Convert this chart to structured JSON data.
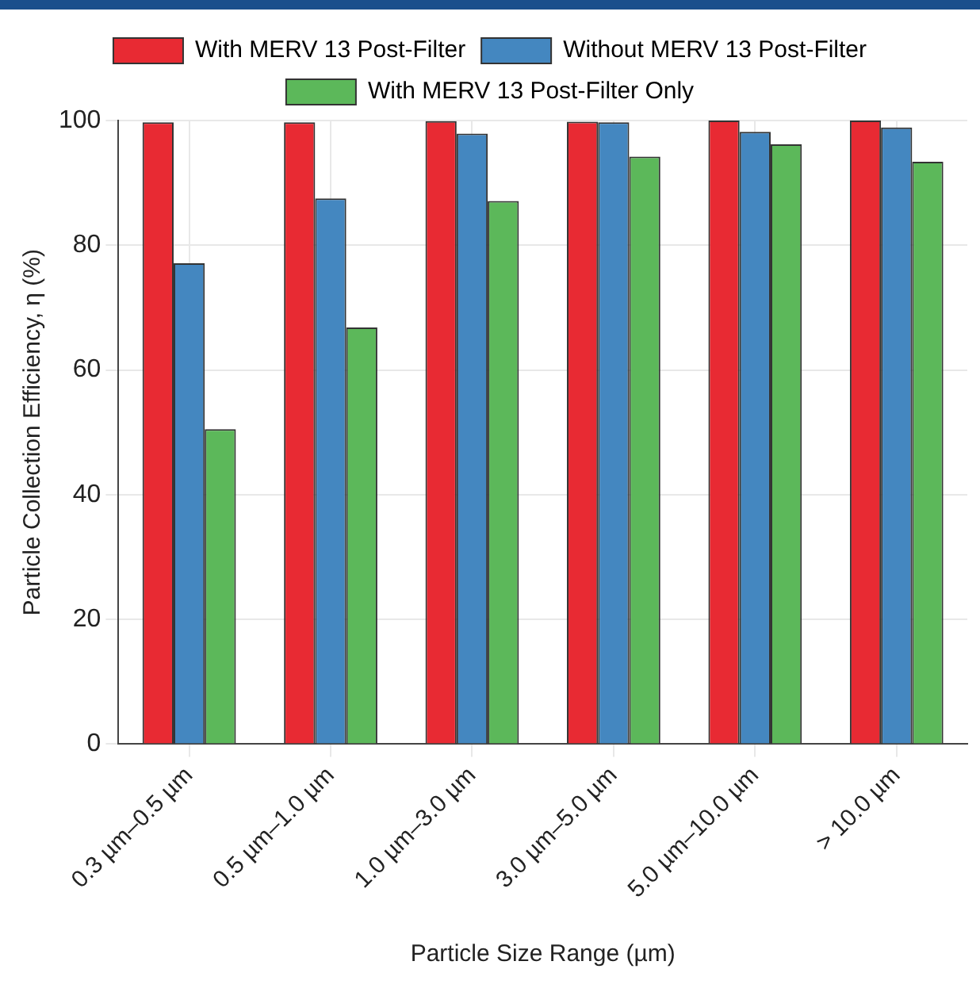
{
  "chart_data": {
    "type": "bar",
    "xlabel": "Particle Size Range (µm)",
    "ylabel": "Particle Collection Efficiency, η (%)",
    "categories": [
      "0.3 µm–0.5 µm",
      "0.5 µm–1.0 µm",
      "1.0 µm–3.0 µm",
      "3.0 µm–5.0 µm",
      "5.0 µm–10.0 µm",
      "> 10.0 µm"
    ],
    "series": [
      {
        "name": "With MERV 13 Post-Filter",
        "color": "#e82a33",
        "values": [
          99.7,
          99.7,
          99.9,
          99.8,
          100,
          100
        ]
      },
      {
        "name": "Without MERV 13 Post-Filter",
        "color": "#4487c0",
        "values": [
          77.1,
          87.5,
          97.9,
          99.7,
          98.2,
          98.9
        ]
      },
      {
        "name": "With MERV 13 Post-Filter Only",
        "color": "#5cb85a",
        "values": [
          50.5,
          66.8,
          87.1,
          94.2,
          96.2,
          93.4
        ]
      }
    ],
    "ylim": [
      0,
      100
    ],
    "yticks": [
      0,
      20,
      40,
      60,
      80,
      100
    ],
    "grid": true,
    "legend": "top"
  }
}
